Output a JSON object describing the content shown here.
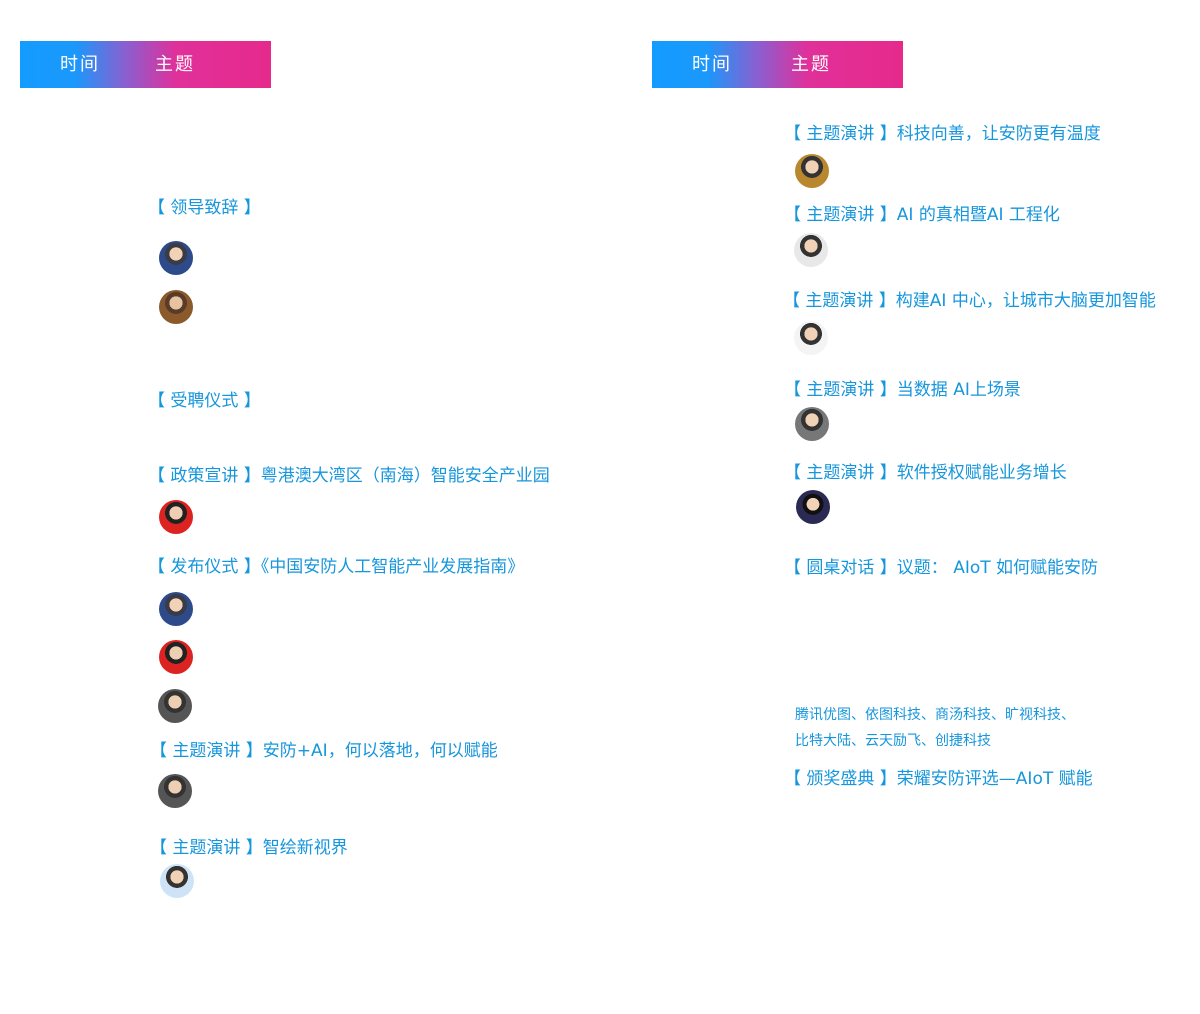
{
  "left": {
    "header": {
      "time": "时间",
      "topic": "主题"
    },
    "sessions": [
      {
        "title": "【 领导致辞 】"
      },
      {
        "title": "【 受聘仪式 】"
      },
      {
        "title": "【 政策宣讲 】粤港澳大湾区（南海）智能安全产业园"
      },
      {
        "title": "【 发布仪式 】《中国安防人工智能产业发展指南》"
      },
      {
        "title": "【 主题演讲 】安防+AI，何以落地，何以赋能"
      },
      {
        "title": "【 主题演讲 】智绘新视界"
      }
    ]
  },
  "right": {
    "header": {
      "time": "时间",
      "topic": "主题"
    },
    "sessions": [
      {
        "title": "【 主题演讲 】科技向善，让安防更有温度"
      },
      {
        "title": "【 主题演讲 】AI 的真相暨AI 工程化"
      },
      {
        "title": "【 主题演讲 】构建AI 中心，让城市大脑更加智能"
      },
      {
        "title": "【 主题演讲 】当数据 AI上场景"
      },
      {
        "title": "【 主题演讲 】软件授权赋能业务增长"
      },
      {
        "title": "【 圆桌对话 】议题： AIoT 如何赋能安防",
        "participants": [
          "腾讯优图、依图科技、商汤科技、旷视科技、",
          "比特大陆、云天励飞、创捷科技"
        ]
      },
      {
        "title": "【 颁奖盛典 】荣耀安防评选—AIoT 赋能"
      }
    ]
  }
}
